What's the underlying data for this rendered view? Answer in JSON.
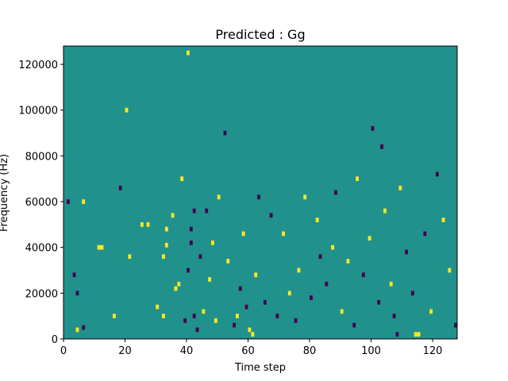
{
  "chart_data": {
    "type": "heatmap",
    "title": "Predicted : Gg",
    "xlabel": "Time step",
    "ylabel": "Frequency (Hz)",
    "xlim": [
      0,
      128
    ],
    "ylim": [
      0,
      128000
    ],
    "x_ticks": [
      0,
      20,
      40,
      60,
      80,
      100,
      120
    ],
    "y_ticks": [
      0,
      20000,
      40000,
      60000,
      80000,
      100000,
      120000
    ],
    "n_time_steps": 128,
    "n_freq_bins": 64,
    "bin_height_hz": 2000,
    "colormap": {
      "background": "#21918c",
      "high": "#fde725",
      "low": "#440154"
    },
    "cells": [
      {
        "t": 6,
        "f": 60000,
        "v": "high"
      },
      {
        "t": 1,
        "f": 60000,
        "v": "low"
      },
      {
        "t": 11,
        "f": 40000,
        "v": "high"
      },
      {
        "t": 6,
        "f": 5000,
        "v": "low"
      },
      {
        "t": 16,
        "f": 10000,
        "v": "high"
      },
      {
        "t": 4,
        "f": 20000,
        "v": "low"
      },
      {
        "t": 12,
        "f": 40000,
        "v": "high"
      },
      {
        "t": 27,
        "f": 50000,
        "v": "high"
      },
      {
        "t": 3,
        "f": 28000,
        "v": "low"
      },
      {
        "t": 18,
        "f": 66000,
        "v": "low"
      },
      {
        "t": 20,
        "f": 100000,
        "v": "high"
      },
      {
        "t": 40,
        "f": 125000,
        "v": "high"
      },
      {
        "t": 4,
        "f": 4000,
        "v": "high"
      },
      {
        "t": 21,
        "f": 36000,
        "v": "high"
      },
      {
        "t": 25,
        "f": 50000,
        "v": "high"
      },
      {
        "t": 30,
        "f": 14000,
        "v": "high"
      },
      {
        "t": 32,
        "f": 10000,
        "v": "high"
      },
      {
        "t": 32,
        "f": 36000,
        "v": "high"
      },
      {
        "t": 33,
        "f": 41000,
        "v": "high"
      },
      {
        "t": 33,
        "f": 48000,
        "v": "high"
      },
      {
        "t": 35,
        "f": 54000,
        "v": "high"
      },
      {
        "t": 36,
        "f": 22000,
        "v": "high"
      },
      {
        "t": 37,
        "f": 24000,
        "v": "high"
      },
      {
        "t": 38,
        "f": 70000,
        "v": "high"
      },
      {
        "t": 39,
        "f": 8000,
        "v": "low"
      },
      {
        "t": 40,
        "f": 30000,
        "v": "low"
      },
      {
        "t": 41,
        "f": 42000,
        "v": "low"
      },
      {
        "t": 41,
        "f": 48000,
        "v": "low"
      },
      {
        "t": 42,
        "f": 56000,
        "v": "low"
      },
      {
        "t": 42,
        "f": 10000,
        "v": "low"
      },
      {
        "t": 43,
        "f": 4000,
        "v": "low"
      },
      {
        "t": 44,
        "f": 36000,
        "v": "low"
      },
      {
        "t": 45,
        "f": 12000,
        "v": "high"
      },
      {
        "t": 46,
        "f": 56000,
        "v": "low"
      },
      {
        "t": 47,
        "f": 26000,
        "v": "high"
      },
      {
        "t": 48,
        "f": 42000,
        "v": "high"
      },
      {
        "t": 49,
        "f": 8000,
        "v": "high"
      },
      {
        "t": 50,
        "f": 62000,
        "v": "high"
      },
      {
        "t": 52,
        "f": 90000,
        "v": "low"
      },
      {
        "t": 53,
        "f": 34000,
        "v": "high"
      },
      {
        "t": 55,
        "f": 6000,
        "v": "low"
      },
      {
        "t": 56,
        "f": 10000,
        "v": "high"
      },
      {
        "t": 57,
        "f": 22000,
        "v": "low"
      },
      {
        "t": 58,
        "f": 46000,
        "v": "high"
      },
      {
        "t": 59,
        "f": 14000,
        "v": "low"
      },
      {
        "t": 60,
        "f": 4000,
        "v": "high"
      },
      {
        "t": 61,
        "f": 2000,
        "v": "high"
      },
      {
        "t": 62,
        "f": 28000,
        "v": "high"
      },
      {
        "t": 63,
        "f": 62000,
        "v": "low"
      },
      {
        "t": 65,
        "f": 16000,
        "v": "low"
      },
      {
        "t": 67,
        "f": 54000,
        "v": "low"
      },
      {
        "t": 69,
        "f": 10000,
        "v": "low"
      },
      {
        "t": 71,
        "f": 46000,
        "v": "high"
      },
      {
        "t": 73,
        "f": 20000,
        "v": "high"
      },
      {
        "t": 75,
        "f": 8000,
        "v": "low"
      },
      {
        "t": 76,
        "f": 30000,
        "v": "high"
      },
      {
        "t": 78,
        "f": 62000,
        "v": "high"
      },
      {
        "t": 80,
        "f": 18000,
        "v": "low"
      },
      {
        "t": 82,
        "f": 52000,
        "v": "high"
      },
      {
        "t": 83,
        "f": 36000,
        "v": "low"
      },
      {
        "t": 85,
        "f": 24000,
        "v": "low"
      },
      {
        "t": 87,
        "f": 40000,
        "v": "high"
      },
      {
        "t": 88,
        "f": 64000,
        "v": "low"
      },
      {
        "t": 90,
        "f": 12000,
        "v": "high"
      },
      {
        "t": 92,
        "f": 34000,
        "v": "high"
      },
      {
        "t": 94,
        "f": 6000,
        "v": "low"
      },
      {
        "t": 95,
        "f": 70000,
        "v": "high"
      },
      {
        "t": 97,
        "f": 28000,
        "v": "low"
      },
      {
        "t": 99,
        "f": 44000,
        "v": "high"
      },
      {
        "t": 100,
        "f": 92000,
        "v": "low"
      },
      {
        "t": 102,
        "f": 16000,
        "v": "low"
      },
      {
        "t": 103,
        "f": 84000,
        "v": "low"
      },
      {
        "t": 104,
        "f": 56000,
        "v": "high"
      },
      {
        "t": 106,
        "f": 24000,
        "v": "high"
      },
      {
        "t": 107,
        "f": 10000,
        "v": "low"
      },
      {
        "t": 108,
        "f": 2000,
        "v": "low"
      },
      {
        "t": 109,
        "f": 66000,
        "v": "high"
      },
      {
        "t": 111,
        "f": 38000,
        "v": "low"
      },
      {
        "t": 113,
        "f": 20000,
        "v": "low"
      },
      {
        "t": 114,
        "f": 2000,
        "v": "high"
      },
      {
        "t": 115,
        "f": 2000,
        "v": "high"
      },
      {
        "t": 117,
        "f": 46000,
        "v": "low"
      },
      {
        "t": 119,
        "f": 12000,
        "v": "high"
      },
      {
        "t": 121,
        "f": 72000,
        "v": "low"
      },
      {
        "t": 123,
        "f": 52000,
        "v": "high"
      },
      {
        "t": 125,
        "f": 30000,
        "v": "high"
      },
      {
        "t": 127,
        "f": 6000,
        "v": "low"
      }
    ]
  }
}
